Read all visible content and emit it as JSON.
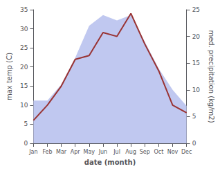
{
  "chart_data": {
    "type": "line",
    "xlabel": "date (month)",
    "ylabel": "max temp (C)",
    "y2label": "med. precipitation (kg/m2)",
    "categories": [
      "Jan",
      "Feb",
      "Mar",
      "Apr",
      "May",
      "Jun",
      "Jul",
      "Aug",
      "Sep",
      "Oct",
      "Nov",
      "Dec"
    ],
    "series": [
      {
        "type": "area",
        "axis": "y2",
        "color": "#c0c8f0",
        "values": [
          8,
          8,
          11,
          16,
          22,
          24,
          23,
          24,
          19,
          14,
          10,
          7
        ]
      },
      {
        "type": "line",
        "axis": "y",
        "color": "#993333",
        "values": [
          6,
          10,
          15,
          22,
          23,
          29,
          28,
          34,
          26,
          19,
          10,
          8
        ]
      }
    ],
    "ylim": [
      0,
      35
    ],
    "yticks": [
      0,
      5,
      10,
      15,
      20,
      25,
      30,
      35
    ],
    "y2lim": [
      0,
      25
    ],
    "y2ticks": [
      0,
      5,
      10,
      15,
      20,
      25
    ],
    "grid": false
  }
}
